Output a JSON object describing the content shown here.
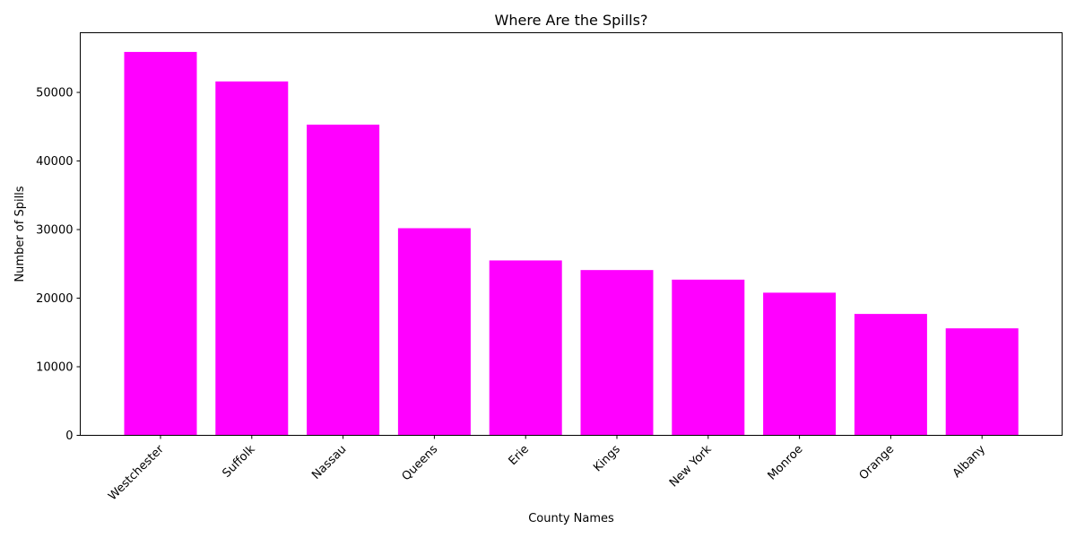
{
  "chart_data": {
    "type": "bar",
    "title": "Where Are the Spills?",
    "xlabel": "County Names",
    "ylabel": "Number of Spills",
    "categories": [
      "Westchester",
      "Suffolk",
      "Nassau",
      "Queens",
      "Erie",
      "Kings",
      "New York",
      "Monroe",
      "Orange",
      "Albany"
    ],
    "values": [
      55900,
      51600,
      45300,
      30200,
      25500,
      24100,
      22700,
      20800,
      17700,
      15600
    ],
    "yticks": [
      0,
      10000,
      20000,
      30000,
      40000,
      50000
    ],
    "ylim": [
      0,
      58700
    ],
    "bar_color": "#ff00ff",
    "grid": false,
    "legend": "none"
  }
}
